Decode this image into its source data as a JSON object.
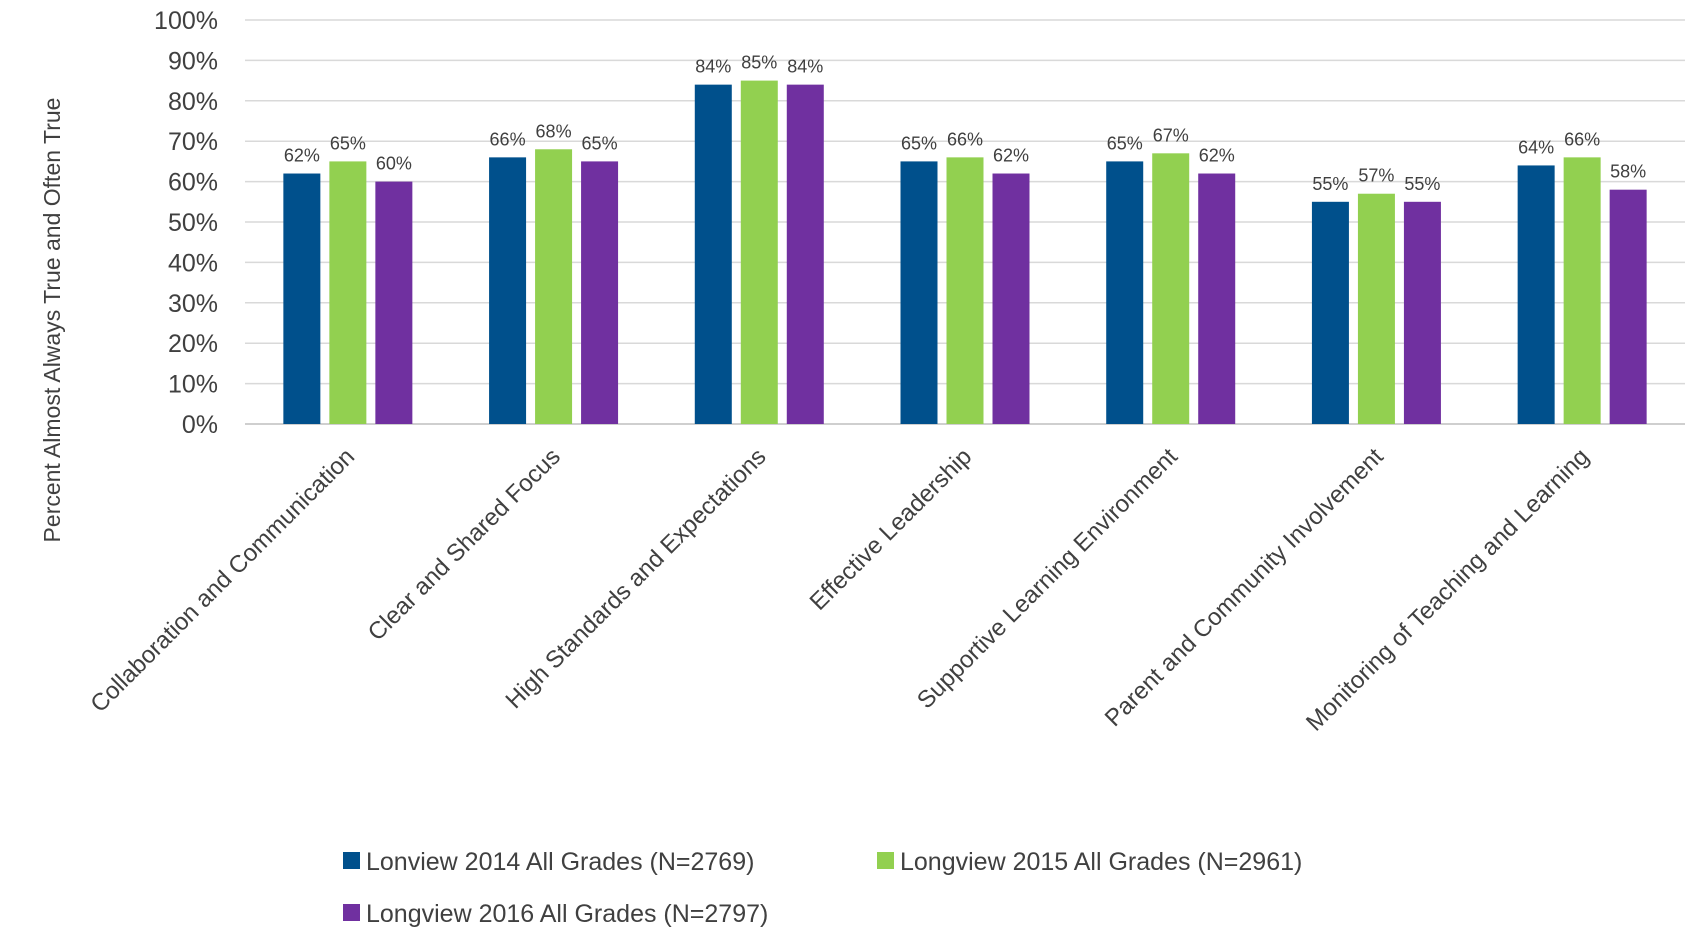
{
  "chart_data": {
    "type": "bar",
    "title": "",
    "xlabel": "",
    "ylabel": "Percent Almost Always True and Often True",
    "ylim": [
      0,
      100
    ],
    "yticks": [
      "0%",
      "10%",
      "20%",
      "30%",
      "40%",
      "50%",
      "60%",
      "70%",
      "80%",
      "90%",
      "100%"
    ],
    "grid": true,
    "legend_position": "bottom",
    "categories": [
      "Collaboration and Communication",
      "Clear and Shared Focus",
      "High Standards and Expectations",
      "Effective Leadership",
      "Supportive Learning Environment",
      "Parent and Community Involvement",
      "Monitoring of Teaching and Learning"
    ],
    "series": [
      {
        "name": "Lonview 2014 All Grades (N=2769)",
        "color": "#00508C",
        "values": [
          62,
          66,
          84,
          65,
          65,
          55,
          64
        ],
        "labels": [
          "62%",
          "66%",
          "84%",
          "65%",
          "65%",
          "55%",
          "64%"
        ]
      },
      {
        "name": "Longview 2015 All Grades (N=2961)",
        "color": "#92D050",
        "values": [
          65,
          68,
          85,
          66,
          67,
          57,
          66
        ],
        "labels": [
          "65%",
          "68%",
          "85%",
          "66%",
          "67%",
          "57%",
          "66%"
        ]
      },
      {
        "name": "Longview 2016 All Grades (N=2797)",
        "color": "#7030A0",
        "values": [
          60,
          65,
          84,
          62,
          62,
          55,
          58
        ],
        "labels": [
          "60%",
          "65%",
          "84%",
          "62%",
          "62%",
          "55%",
          "58%"
        ]
      }
    ]
  }
}
